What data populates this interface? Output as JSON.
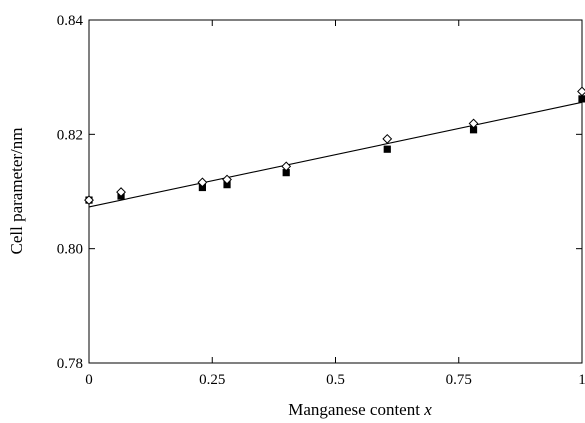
{
  "chart_data": {
    "type": "scatter",
    "xlabel": "Manganese content",
    "xlabel_var": "x",
    "ylabel": "Cell parameter/nm",
    "xlim": [
      0,
      1
    ],
    "ylim": [
      0.78,
      0.84
    ],
    "xticks": [
      0,
      0.25,
      0.5,
      0.75,
      1
    ],
    "xtick_labels": [
      "0",
      "0.25",
      "0.5",
      "0.75",
      "1"
    ],
    "yticks": [
      0.78,
      0.8,
      0.82,
      0.84
    ],
    "ytick_labels": [
      "0.78",
      "0.80",
      "0.82",
      "0.84"
    ],
    "grid": false,
    "series": [
      {
        "marker": "open-diamond",
        "x": [
          0,
          0.065,
          0.23,
          0.28,
          0.4,
          0.605,
          0.78,
          1.0
        ],
        "y": [
          0.8085,
          0.8099,
          0.8116,
          0.8121,
          0.8144,
          0.8192,
          0.8219,
          0.8275
        ]
      },
      {
        "marker": "filled-square",
        "x": [
          0,
          0.065,
          0.23,
          0.28,
          0.4,
          0.605,
          0.78,
          1.0
        ],
        "y": [
          0.8085,
          0.8092,
          0.8107,
          0.8112,
          0.8133,
          0.8174,
          0.8208,
          0.8262
        ]
      }
    ],
    "fit_line": {
      "x": [
        0,
        1
      ],
      "y": [
        0.8073,
        0.8256
      ]
    }
  }
}
